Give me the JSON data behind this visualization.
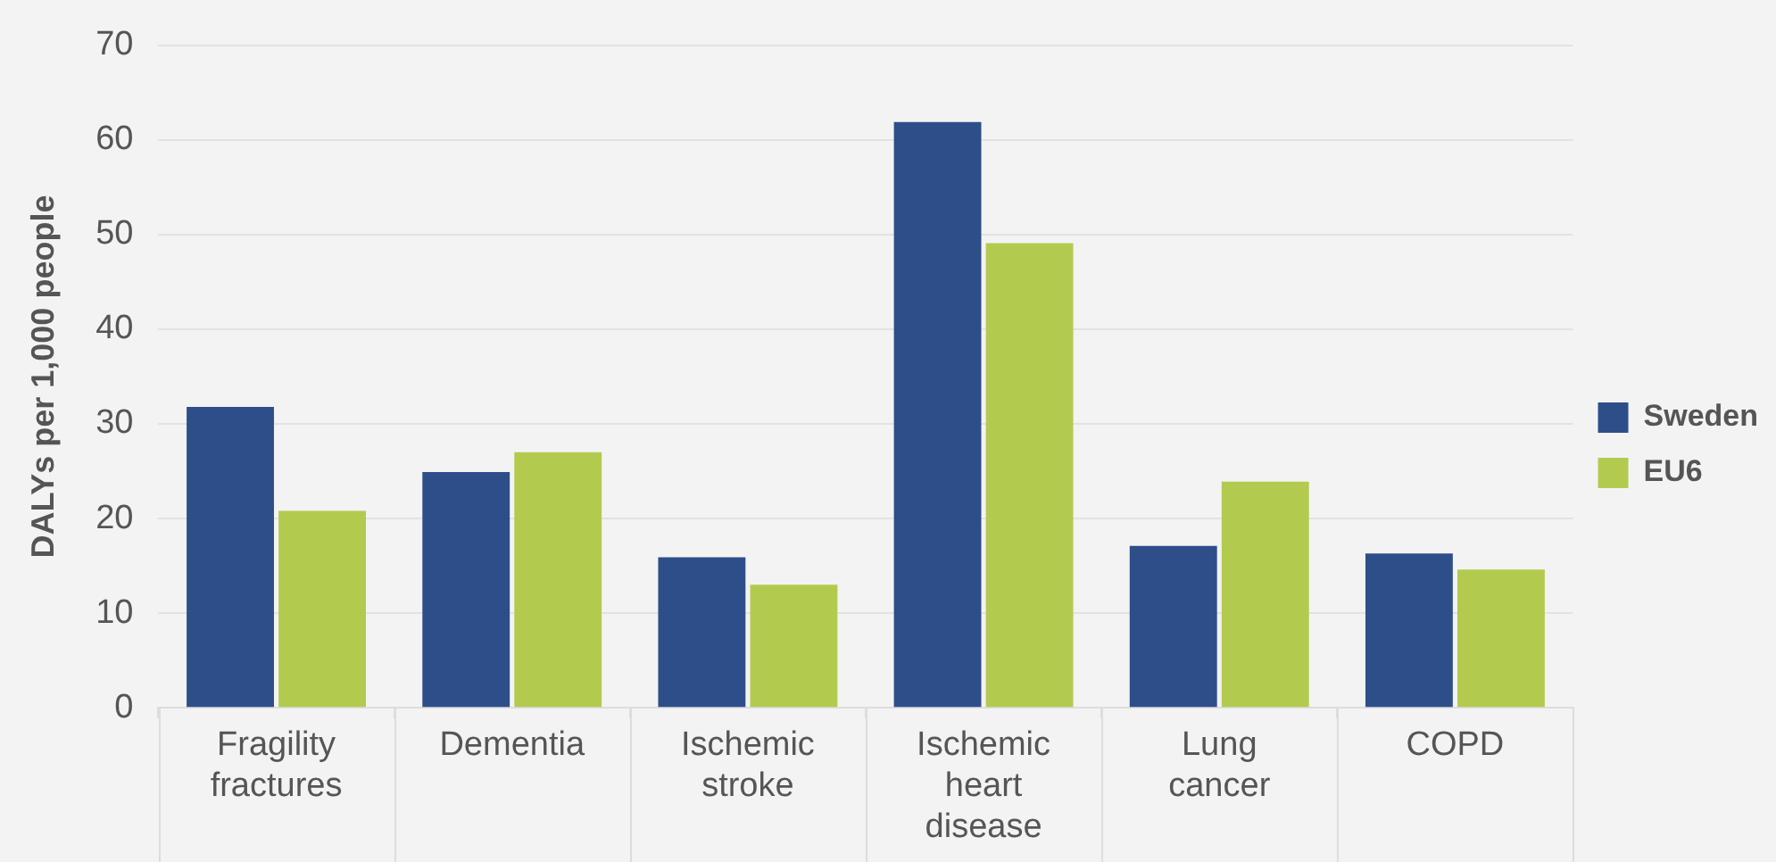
{
  "chart_data": {
    "type": "bar",
    "ylabel": "DALYs per 1,000 people",
    "categories": [
      "Fragility fractures",
      "Dementia",
      "Ischemic stroke",
      "Ischemic heart disease",
      "Lung cancer",
      "COPD"
    ],
    "series": [
      {
        "name": "Sweden",
        "color": "#2e4e8a",
        "values": [
          31.8,
          24.9,
          15.9,
          61.9,
          17.1,
          16.3
        ]
      },
      {
        "name": "EU6",
        "color": "#b2cb4f",
        "values": [
          20.8,
          27.0,
          13.0,
          49.1,
          23.9,
          14.6
        ]
      }
    ],
    "ylim": [
      0,
      70
    ],
    "yticks": [
      0,
      10,
      20,
      30,
      40,
      50,
      60,
      70
    ],
    "grid": "y",
    "legend": "right"
  }
}
